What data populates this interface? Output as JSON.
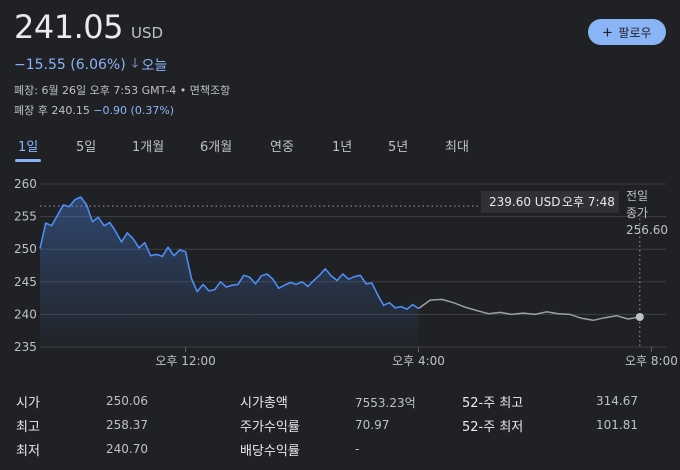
{
  "quote": {
    "price": "241.05",
    "currency": "USD",
    "change": "−15.55 (6.06%)",
    "direction_icon": "arrow-down-icon",
    "change_period": "오늘",
    "close_info": "폐장: 6월 26일 오후 7:53 GMT-4 • 면책조항",
    "after_hours_label": "폐장 후 240.15",
    "after_hours_change": "−0.90 (0.37%)"
  },
  "follow_button": {
    "label": "팔로우",
    "icon": "plus-icon"
  },
  "tabs": [
    {
      "label": "1일",
      "active": true
    },
    {
      "label": "5일",
      "active": false
    },
    {
      "label": "1개월",
      "active": false
    },
    {
      "label": "6개월",
      "active": false
    },
    {
      "label": "연중",
      "active": false
    },
    {
      "label": "1년",
      "active": false
    },
    {
      "label": "5년",
      "active": false
    },
    {
      "label": "최대",
      "active": false
    }
  ],
  "colors": {
    "accent": "#8ab4f8",
    "line_regular": "#4c8df6",
    "line_after": "#9aa0a6",
    "background": "#202124"
  },
  "chart_data": {
    "type": "line",
    "y_ticks": [
      "260",
      "255",
      "250",
      "245",
      "240",
      "235"
    ],
    "ylim": [
      235,
      260
    ],
    "x_ticks": [
      {
        "label": "오후 12:00",
        "x": 12
      },
      {
        "label": "오후 4:00",
        "x": 16
      },
      {
        "label": "오후 8:00",
        "x": 20
      }
    ],
    "xlim": [
      9.5,
      20.25
    ],
    "previous_close": 256.6,
    "previous_close_label": [
      "전일",
      "종가",
      "256.60"
    ],
    "tooltip": {
      "value": "239.60 USD",
      "time": "오후 7:48",
      "x": 19.8,
      "y": 239.6
    },
    "grid": true,
    "series": [
      {
        "session": "regular",
        "x": [
          9.5,
          9.6,
          9.7,
          9.8,
          9.9,
          10.0,
          10.1,
          10.2,
          10.3,
          10.4,
          10.5,
          10.6,
          10.7,
          10.8,
          10.9,
          11.0,
          11.1,
          11.2,
          11.3,
          11.4,
          11.5,
          11.6,
          11.7,
          11.8,
          11.9,
          12.0,
          12.1,
          12.2,
          12.3,
          12.4,
          12.5,
          12.6,
          12.7,
          12.8,
          12.9,
          13.0,
          13.1,
          13.2,
          13.3,
          13.4,
          13.5,
          13.6,
          13.7,
          13.8,
          13.9,
          14.0,
          14.1,
          14.2,
          14.3,
          14.4,
          14.5,
          14.6,
          14.7,
          14.8,
          14.9,
          15.0,
          15.1,
          15.2,
          15.3,
          15.4,
          15.5,
          15.6,
          15.7,
          15.8,
          15.9,
          16.0
        ],
        "y": [
          250.1,
          254.0,
          253.6,
          255.2,
          256.8,
          256.5,
          257.6,
          258.0,
          256.8,
          254.2,
          254.9,
          253.6,
          254.1,
          252.7,
          251.1,
          252.5,
          251.6,
          250.2,
          251.0,
          249.0,
          249.2,
          248.9,
          250.3,
          249.0,
          249.9,
          249.6,
          245.5,
          243.5,
          244.6,
          243.6,
          243.8,
          245.0,
          244.2,
          244.5,
          244.6,
          246.0,
          245.7,
          244.7,
          245.9,
          246.2,
          245.4,
          244.0,
          244.5,
          244.9,
          244.6,
          245.0,
          244.3,
          245.2,
          246.0,
          247.0,
          245.9,
          245.2,
          246.2,
          245.4,
          245.8,
          246.0,
          244.7,
          244.8,
          243.0,
          241.4,
          241.8,
          241.0,
          241.2,
          240.8,
          241.5,
          240.9
        ]
      },
      {
        "session": "after-hours",
        "x": [
          16.0,
          16.2,
          16.4,
          16.6,
          16.8,
          17.0,
          17.2,
          17.4,
          17.6,
          17.8,
          18.0,
          18.2,
          18.4,
          18.6,
          18.8,
          19.0,
          19.2,
          19.4,
          19.6,
          19.8
        ],
        "y": [
          240.9,
          242.2,
          242.3,
          241.8,
          241.1,
          240.6,
          240.1,
          240.3,
          240.0,
          240.2,
          240.0,
          240.4,
          240.1,
          240.0,
          239.4,
          239.1,
          239.5,
          239.8,
          239.3,
          239.6
        ]
      }
    ]
  },
  "stats": [
    {
      "label": "시가",
      "value": "250.06"
    },
    {
      "label": "최고",
      "value": "258.37"
    },
    {
      "label": "최저",
      "value": "240.70"
    },
    {
      "label": "시가총액",
      "value": "7553.23억"
    },
    {
      "label": "주가수익률",
      "value": "70.97"
    },
    {
      "label": "배당수익률",
      "value": "-"
    },
    {
      "label": "52-주 최고",
      "value": "314.67"
    },
    {
      "label": "52-주 최저",
      "value": "101.81"
    }
  ]
}
